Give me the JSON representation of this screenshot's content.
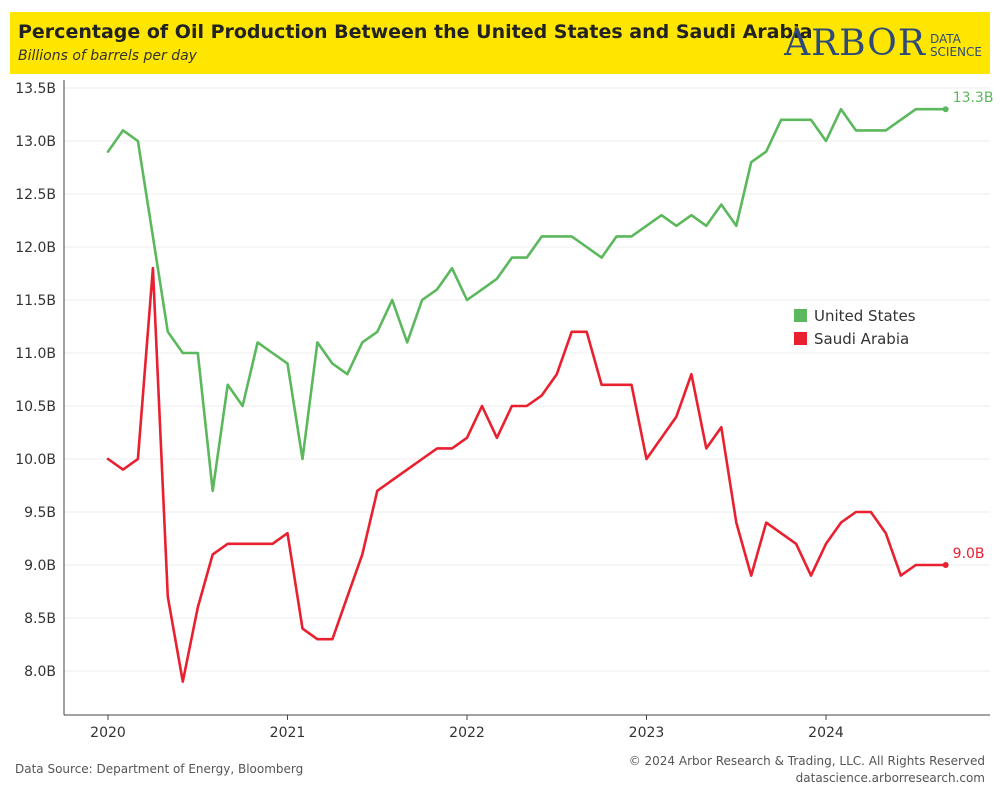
{
  "header": {
    "title": "Percentage of Oil Production Between the United States and Saudi Arabia",
    "subtitle": "Billions of barrels per day",
    "logo_word": "ARBOR",
    "logo_line1": "DATA",
    "logo_line2": "SCIENCE"
  },
  "footer": {
    "source": "Data Source: Department of Energy, Bloomberg",
    "copyright": "© 2024 Arbor Research & Trading, LLC. All Rights Reserved",
    "website": "datascience.arborresearch.com"
  },
  "colors": {
    "header_bg": "#ffe600",
    "logo": "#2e4a78",
    "us": "#5cb85c",
    "saudi": "#e8202f"
  },
  "chart_data": {
    "type": "line",
    "title": "Percentage of Oil Production Between the United States and Saudi Arabia",
    "subtitle": "Billions of barrels per day",
    "xlabel": "",
    "ylabel": "",
    "ylim": [
      7.8,
      13.55
    ],
    "yticks": [
      8.0,
      8.5,
      9.0,
      9.5,
      10.0,
      10.5,
      11.0,
      11.5,
      12.0,
      12.5,
      13.0,
      13.5
    ],
    "ytick_labels": [
      "8.0B",
      "8.5B",
      "9.0B",
      "9.5B",
      "10.0B",
      "10.5B",
      "11.0B",
      "11.5B",
      "12.0B",
      "12.5B",
      "13.0B",
      "13.5B"
    ],
    "xlim": [
      "2019-12-01",
      "2024-12-01"
    ],
    "xticks": [
      "2020",
      "2021",
      "2022",
      "2023",
      "2024"
    ],
    "grid": "horizontal",
    "legend_position": "right",
    "x": [
      "2020-01",
      "2020-02",
      "2020-03",
      "2020-04",
      "2020-05",
      "2020-06",
      "2020-07",
      "2020-08",
      "2020-09",
      "2020-10",
      "2020-11",
      "2020-12",
      "2021-01",
      "2021-02",
      "2021-03",
      "2021-04",
      "2021-05",
      "2021-06",
      "2021-07",
      "2021-08",
      "2021-09",
      "2021-10",
      "2021-11",
      "2021-12",
      "2022-01",
      "2022-02",
      "2022-03",
      "2022-04",
      "2022-05",
      "2022-06",
      "2022-07",
      "2022-08",
      "2022-09",
      "2022-10",
      "2022-11",
      "2022-12",
      "2023-01",
      "2023-02",
      "2023-03",
      "2023-04",
      "2023-05",
      "2023-06",
      "2023-07",
      "2023-08",
      "2023-09",
      "2023-10",
      "2023-11",
      "2023-12",
      "2024-01",
      "2024-02",
      "2024-03",
      "2024-04",
      "2024-05",
      "2024-06",
      "2024-07",
      "2024-08",
      "2024-09"
    ],
    "series": [
      {
        "name": "United States",
        "color": "#5cb85c",
        "end_label": "13.3B",
        "values": [
          12.9,
          13.1,
          13.0,
          12.1,
          11.2,
          11.0,
          11.0,
          9.7,
          10.7,
          10.5,
          11.1,
          11.0,
          10.9,
          10.0,
          11.1,
          10.9,
          10.8,
          11.1,
          11.2,
          11.5,
          11.1,
          11.5,
          11.6,
          11.8,
          11.5,
          11.6,
          11.7,
          11.9,
          11.9,
          12.1,
          12.1,
          12.1,
          12.0,
          11.9,
          12.1,
          12.1,
          12.2,
          12.3,
          12.2,
          12.3,
          12.2,
          12.4,
          12.2,
          12.8,
          12.9,
          13.2,
          13.2,
          13.2,
          13.0,
          13.3,
          13.1,
          13.1,
          13.1,
          13.2,
          13.3,
          13.3,
          13.3
        ]
      },
      {
        "name": "Saudi Arabia",
        "color": "#e8202f",
        "end_label": "9.0B",
        "values": [
          10.0,
          9.9,
          10.0,
          11.8,
          8.7,
          7.9,
          8.6,
          9.1,
          9.2,
          9.2,
          9.2,
          9.2,
          9.3,
          8.4,
          8.3,
          8.3,
          8.7,
          9.1,
          9.7,
          9.8,
          9.9,
          10.0,
          10.1,
          10.1,
          10.2,
          10.5,
          10.2,
          10.5,
          10.5,
          10.6,
          10.8,
          11.2,
          11.2,
          10.7,
          10.7,
          10.7,
          10.0,
          10.2,
          10.4,
          10.8,
          10.1,
          10.3,
          9.4,
          8.9,
          9.4,
          9.3,
          9.2,
          8.9,
          9.2,
          9.4,
          9.5,
          9.5,
          9.3,
          8.9,
          9.0,
          9.0,
          9.0
        ]
      }
    ]
  }
}
